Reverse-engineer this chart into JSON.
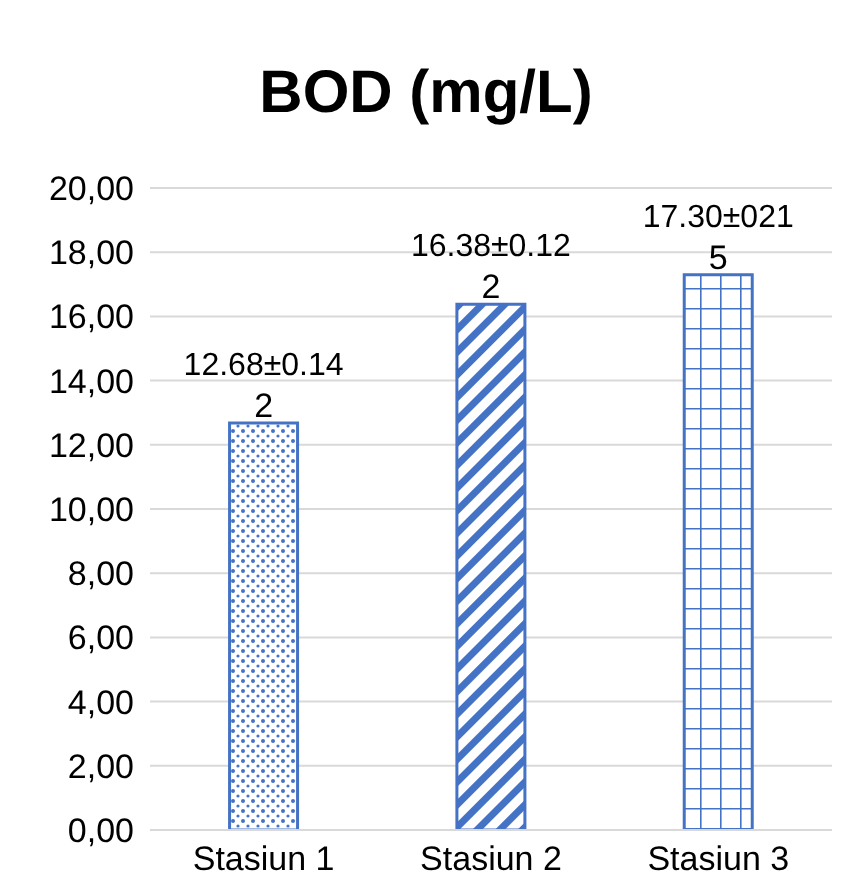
{
  "chart_data": {
    "type": "bar",
    "title": "BOD (mg/L)",
    "categories": [
      "Stasiun 1",
      "Stasiun 2",
      "Stasiun 3"
    ],
    "values": [
      12.68,
      16.38,
      17.3
    ],
    "colors": [
      "#4472c4",
      "#4472c4",
      "#4472c4"
    ],
    "value_labels": [
      "12.68±0.14",
      "16.38±0.12",
      "17.30±021"
    ],
    "annotations": [
      {
        "text": "2",
        "x": "Stasiun 1",
        "y": 12.68
      },
      {
        "text": "2",
        "x": "Stasiun 2",
        "y": 16.38
      },
      {
        "text": "5",
        "x": "Stasiun 3",
        "y": 17.3
      }
    ],
    "ylim": [
      0,
      20
    ],
    "yticks": [
      {
        "value": 0,
        "label": "0,00"
      },
      {
        "value": 2,
        "label": "2,00"
      },
      {
        "value": 4,
        "label": "4,00"
      },
      {
        "value": 6,
        "label": "6,00"
      },
      {
        "value": 8,
        "label": "8,00"
      },
      {
        "value": 10,
        "label": "10,00"
      },
      {
        "value": 12,
        "label": "12,00"
      },
      {
        "value": 14,
        "label": "14,00"
      },
      {
        "value": 16,
        "label": "16,00"
      },
      {
        "value": 18,
        "label": "18,00"
      },
      {
        "value": 20,
        "label": "20,00"
      }
    ],
    "grid": "y",
    "legend": false
  }
}
